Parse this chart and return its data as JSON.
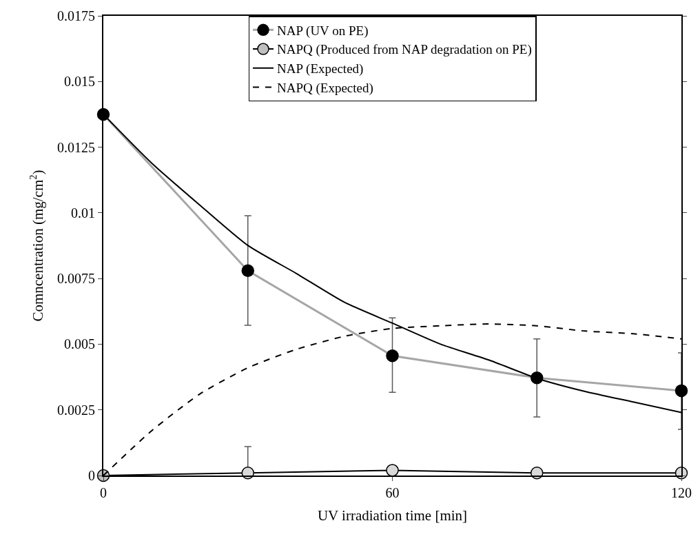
{
  "chart_data": {
    "type": "line",
    "xlabel": "UV irradiation time [min]",
    "ylabel": "Comncentration (mg/cm$^{2}$)",
    "xlim": [
      0,
      120
    ],
    "xticks": [
      0,
      60,
      120
    ],
    "ylim": [
      0,
      0.0175
    ],
    "yticks": [
      0,
      0.0025,
      0.005,
      0.0075,
      0.01,
      0.0125,
      0.015,
      0.0175
    ],
    "legend": "top",
    "marker": "circle",
    "series": [
      {
        "name": "NAP (UV on PE)",
        "color": "#a6a6a6",
        "colors": [
          "#000000",
          "#000000",
          "#000000",
          "#000000",
          "#000000"
        ],
        "x": [
          0,
          30,
          60,
          90,
          120
        ],
        "values": [
          0.01375,
          0.0078,
          0.00456,
          0.00372,
          0.00323
        ],
        "errors": [
          null,
          [
            0.00572,
            0.00989
          ],
          [
            0.00317,
            0.006
          ],
          [
            0.00223,
            0.0052
          ],
          [
            0.00176,
            0.00467
          ]
        ]
      },
      {
        "name": "NAPQ (Produced from NAP degradation on PE)",
        "color": "#000000",
        "colors": [
          "#bfbfbf",
          "#d9d9d9",
          "#d9d9d9",
          "#d9d9d9",
          "#d9d9d9"
        ],
        "x": [
          0,
          30,
          60,
          90,
          120
        ],
        "values": [
          0,
          0.0001,
          0.0002,
          0.0001,
          0.0001
        ],
        "errors": [
          null,
          [
            0.0001,
            0.0011
          ],
          null,
          null,
          null
        ]
      },
      {
        "name": "NAP (Expected)",
        "color": "#000000",
        "marker": "none",
        "line_style": "solid",
        "x": [
          0,
          10,
          20,
          30,
          40,
          50,
          60,
          70,
          80,
          90,
          100,
          110,
          120
        ],
        "values": [
          0.01375,
          0.0119,
          0.0103,
          0.00876,
          0.0077,
          0.0066,
          0.0058,
          0.005,
          0.0044,
          0.0037,
          0.0032,
          0.0028,
          0.0024
        ]
      },
      {
        "name": "NAPQ (Expected)",
        "color": "#000000",
        "marker": "none",
        "line_style": "dashed",
        "x": [
          0,
          10,
          20,
          30,
          40,
          50,
          60,
          70,
          80,
          90,
          100,
          110,
          120
        ],
        "values": [
          0,
          0.0017,
          0.0031,
          0.0041,
          0.0048,
          0.0053,
          0.0056,
          0.0057,
          0.00577,
          0.0057,
          0.0055,
          0.0054,
          0.0052
        ]
      }
    ]
  }
}
